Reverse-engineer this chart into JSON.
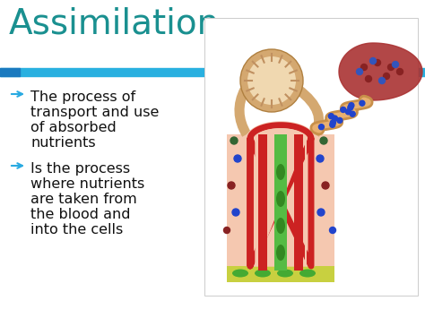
{
  "title": "Assimilation",
  "title_color": "#1a9090",
  "title_fontsize": 28,
  "bg_color": "#ffffff",
  "bar_color_dark": "#1a7abf",
  "bar_color_light": "#29b0e0",
  "bullet1_lines": [
    "The process of",
    "transport and use",
    "of absorbed",
    "nutrients"
  ],
  "bullet2_lines": [
    "Is the process",
    "where nutrients",
    "are taken from",
    "the blood and",
    "into the cells"
  ],
  "text_color": "#111111",
  "arrow_color": "#29aae1",
  "text_fontsize": 11.5
}
